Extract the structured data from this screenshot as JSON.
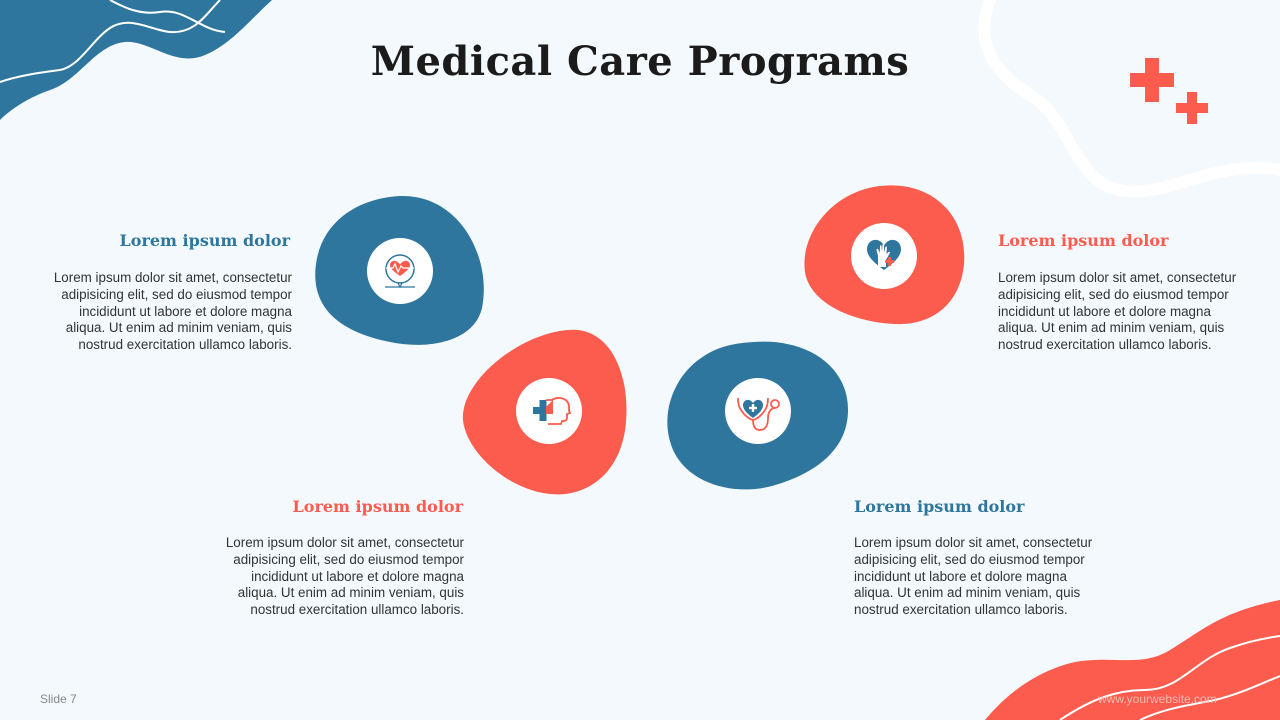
{
  "slide": {
    "title": "Medical Care Programs",
    "slide_number": "Slide 7",
    "website": "www.yourwebsite.com"
  },
  "colors": {
    "blue": "#2e769e",
    "coral": "#fc5c4e",
    "background": "#f3f9fd",
    "text": "#333333"
  },
  "items": [
    {
      "heading": "Lorem ipsum dolor",
      "body": "Lorem ipsum dolor sit amet, consectetur adipisicing elit, sed do eiusmod tempor incididunt ut labore et dolore magna aliqua. Ut enim ad minim veniam, quis nostrud exercitation ullamco laboris.",
      "icon": "heartbeat-bubble-icon",
      "accent": "blue"
    },
    {
      "heading": "Lorem ipsum dolor",
      "body": "Lorem ipsum dolor sit amet, consectetur adipisicing elit, sed do eiusmod tempor incididunt ut labore et dolore magna aliqua. Ut enim ad minim veniam, quis nostrud exercitation ullamco laboris.",
      "icon": "medical-head-icon",
      "accent": "coral"
    },
    {
      "heading": "Lorem ipsum dolor",
      "body": "Lorem ipsum dolor sit amet, consectetur adipisicing elit, sed do eiusmod tempor incididunt ut labore et dolore magna aliqua. Ut enim ad minim veniam, quis nostrud exercitation ullamco laboris.",
      "icon": "stethoscope-heart-icon",
      "accent": "blue"
    },
    {
      "heading": "Lorem ipsum dolor",
      "body": "Lorem ipsum dolor sit amet, consectetur adipisicing elit, sed do eiusmod tempor incididunt ut labore et dolore magna aliqua. Ut enim ad minim veniam, quis nostrud exercitation ullamco laboris.",
      "icon": "heart-hand-care-icon",
      "accent": "coral"
    }
  ]
}
